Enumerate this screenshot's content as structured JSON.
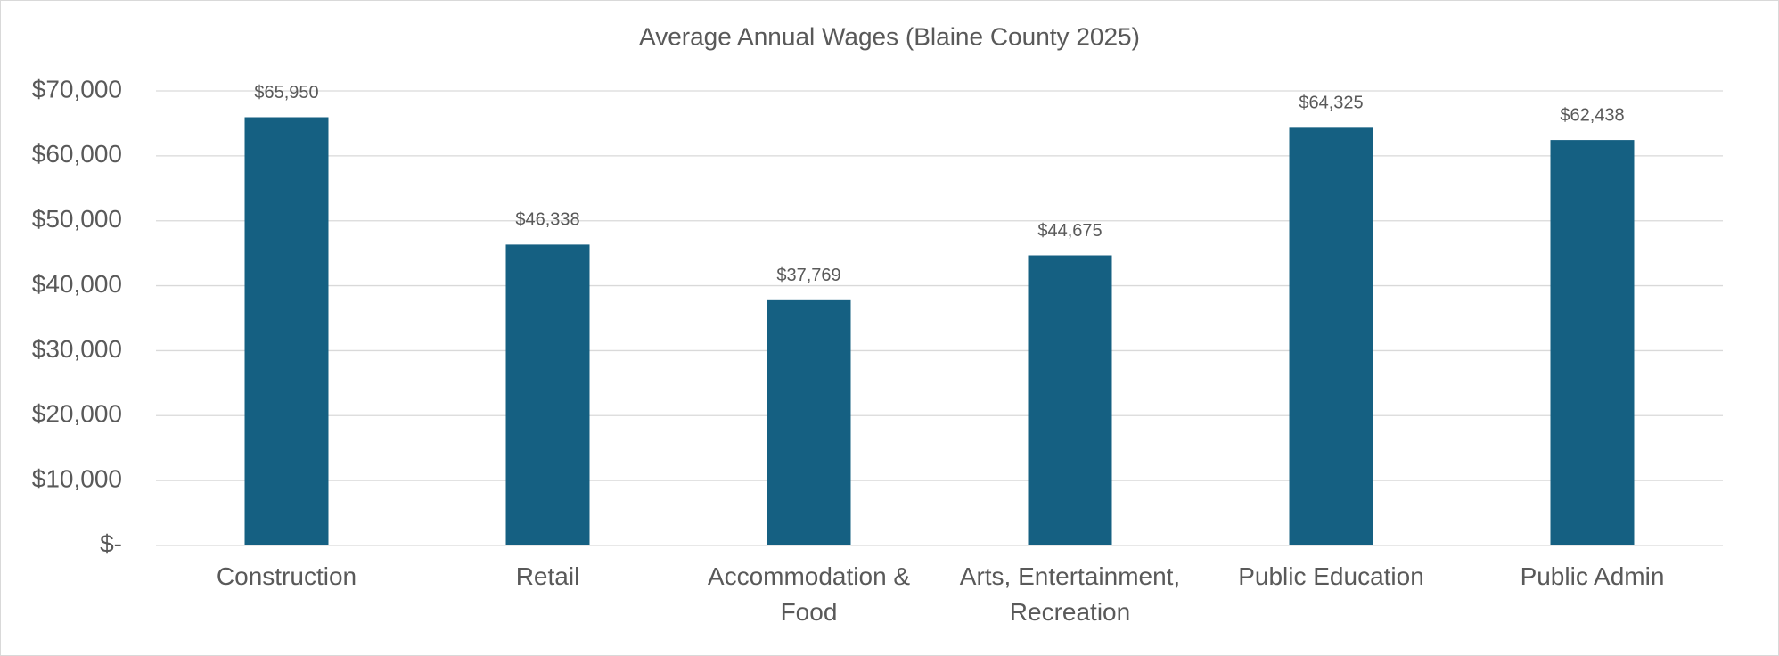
{
  "chart_data": {
    "type": "bar",
    "title": "Average Annual Wages (Blaine County 2025)",
    "categories": [
      "Construction",
      "Retail",
      "Accommodation & Food",
      "Arts, Entertainment, Recreation",
      "Public Education",
      "Public Admin"
    ],
    "values": [
      65950,
      46338,
      37769,
      44675,
      64325,
      62438
    ],
    "value_labels": [
      "$65,950",
      "$46,338",
      "$37,769",
      "$44,675",
      "$64,325",
      "$62,438"
    ],
    "color": "#156082",
    "ylim": [
      0,
      70000
    ],
    "yticks": [
      {
        "value": 0,
        "label": "$-"
      },
      {
        "value": 10000,
        "label": "$10,000"
      },
      {
        "value": 20000,
        "label": "$20,000"
      },
      {
        "value": 30000,
        "label": "$30,000"
      },
      {
        "value": 40000,
        "label": "$40,000"
      },
      {
        "value": 50000,
        "label": "$50,000"
      },
      {
        "value": 60000,
        "label": "$60,000"
      },
      {
        "value": 70000,
        "label": "$70,000"
      }
    ],
    "grid": true
  }
}
